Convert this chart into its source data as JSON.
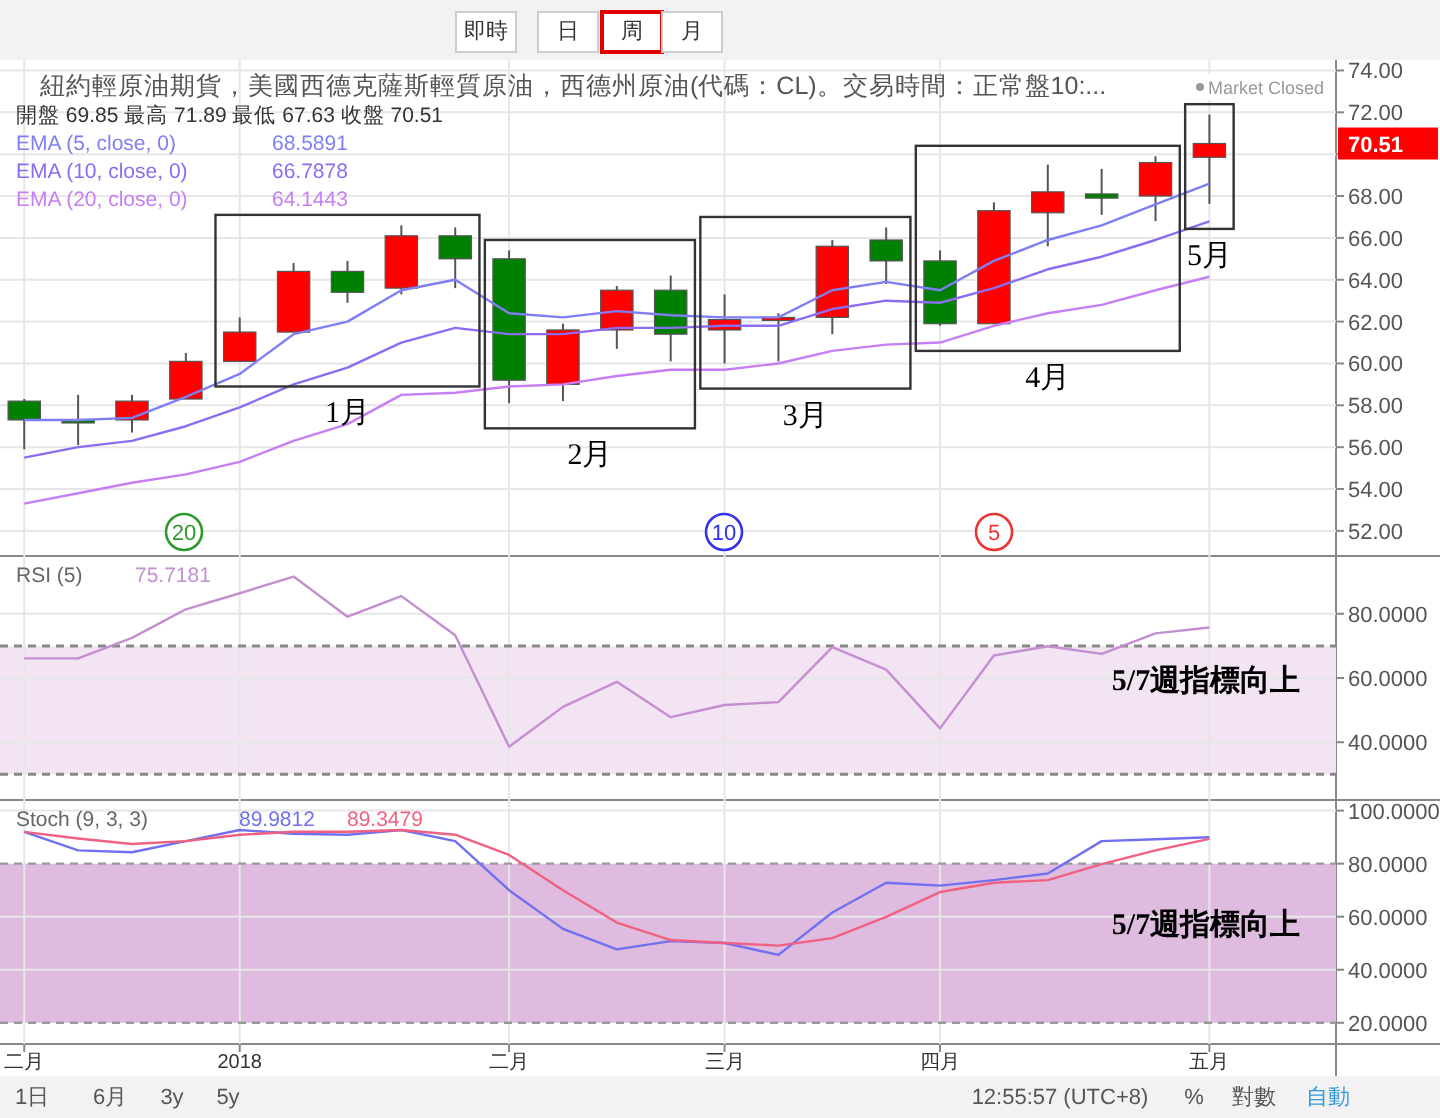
{
  "chart_data": [
    {
      "type": "candlestick",
      "title": "紐約輕原油期貨，美國西德克薩斯輕質原油，西德州原油(代碼：CL)。交易時間：正常盤10:...",
      "categories": [
        null,
        null,
        null,
        null,
        null,
        null,
        null,
        null,
        null,
        null,
        null,
        null,
        null,
        null,
        null,
        null,
        null,
        null,
        null,
        null,
        null,
        null,
        null
      ],
      "ohlc": [
        [
          58.2,
          58.3,
          55.9,
          57.3
        ],
        [
          57.3,
          58.5,
          56.1,
          57.2
        ],
        [
          57.3,
          58.5,
          56.7,
          58.2
        ],
        [
          58.3,
          60.5,
          58.3,
          60.1
        ],
        [
          60.1,
          62.2,
          60.1,
          61.5
        ],
        [
          61.5,
          64.8,
          61.5,
          64.4
        ],
        [
          64.4,
          64.9,
          62.9,
          63.4
        ],
        [
          63.6,
          66.6,
          63.3,
          66.1
        ],
        [
          66.1,
          66.5,
          63.6,
          65.0
        ],
        [
          65.0,
          65.4,
          58.1,
          59.2
        ],
        [
          59.0,
          61.9,
          58.2,
          61.6
        ],
        [
          61.6,
          63.7,
          60.7,
          63.5
        ],
        [
          63.5,
          64.2,
          60.1,
          61.4
        ],
        [
          61.6,
          63.3,
          60.0,
          62.1
        ],
        [
          62.1,
          62.4,
          60.1,
          62.2
        ],
        [
          62.2,
          65.9,
          61.4,
          65.6
        ],
        [
          65.9,
          66.5,
          63.8,
          64.9
        ],
        [
          64.9,
          65.4,
          61.8,
          61.9
        ],
        [
          61.9,
          67.7,
          61.9,
          67.3
        ],
        [
          67.2,
          69.5,
          65.6,
          68.2
        ],
        [
          68.1,
          69.3,
          67.1,
          67.9
        ],
        [
          68.0,
          69.9,
          66.8,
          69.6
        ],
        [
          69.85,
          71.89,
          67.63,
          70.51
        ]
      ],
      "colors": [
        "#008000",
        "#008000",
        "#ff0000",
        "#ff0000",
        "#ff0000",
        "#ff0000",
        "#008000",
        "#ff0000",
        "#008000",
        "#008000",
        "#ff0000",
        "#ff0000",
        "#008000",
        "#ff0000",
        "#ff0000",
        "#ff0000",
        "#008000",
        "#008000",
        "#ff0000",
        "#ff0000",
        "#008000",
        "#ff0000",
        "#ff0000"
      ],
      "series": [
        {
          "type": "line",
          "name": "EMA (5, close, 0)",
          "color": "#7f7ff5",
          "values": [
            57.3,
            57.3,
            57.4,
            58.4,
            59.5,
            61.4,
            62.0,
            63.5,
            64.0,
            62.4,
            62.2,
            62.5,
            62.3,
            62.2,
            62.2,
            63.5,
            63.9,
            63.5,
            64.9,
            65.9,
            66.6,
            67.6,
            68.5891
          ]
        },
        {
          "type": "line",
          "name": "EMA (10, close, 0)",
          "color": "#8c6cf0",
          "values": [
            55.5,
            56.0,
            56.3,
            57.0,
            57.9,
            59.0,
            59.8,
            61.0,
            61.7,
            61.4,
            61.4,
            61.7,
            61.7,
            61.8,
            61.8,
            62.6,
            63.0,
            62.9,
            63.6,
            64.5,
            65.1,
            65.9,
            66.7878
          ]
        },
        {
          "type": "line",
          "name": "EMA (20, close, 0)",
          "color": "#c77ef5",
          "values": [
            53.3,
            53.8,
            54.3,
            54.7,
            55.3,
            56.3,
            57.1,
            58.5,
            58.6,
            58.9,
            59.0,
            59.4,
            59.7,
            59.7,
            60.0,
            60.6,
            60.9,
            61.0,
            61.8,
            62.4,
            62.8,
            63.5,
            64.1443
          ]
        }
      ],
      "ylim": [
        50.8,
        74.5
      ],
      "yticks": [
        {
          "value": 52,
          "label": "52.00"
        },
        {
          "value": 54,
          "label": "54.00"
        },
        {
          "value": 56,
          "label": "56.00"
        },
        {
          "value": 58,
          "label": "58.00"
        },
        {
          "value": 60,
          "label": "60.00"
        },
        {
          "value": 62,
          "label": "62.00"
        },
        {
          "value": 64,
          "label": "64.00"
        },
        {
          "value": 66,
          "label": "66.00"
        },
        {
          "value": 68,
          "label": "68.00"
        },
        {
          "value": 70,
          "label": null
        },
        {
          "value": 72,
          "label": "72.00"
        },
        {
          "value": 74,
          "label": "74.00"
        }
      ],
      "tick_labels": "y",
      "grid": true,
      "legend": "top left",
      "annotations": [
        "開盤 69.85 最高 71.89 最低 67.63 收盤 70.51",
        "Market Closed",
        "即時",
        "日",
        "周",
        "月",
        "1日",
        "6月",
        "3y",
        "5y",
        "12:55:57 (UTC+8)",
        "%",
        "對數",
        "自動",
        "1月",
        "2月",
        "3月",
        "4月",
        "5月",
        "20",
        "10",
        "5",
        "70.51",
        "68.5891",
        "66.7878",
        "64.1443"
      ]
    },
    {
      "type": "line",
      "title": "RSI (5)",
      "categories": [
        null,
        null,
        null,
        null,
        null,
        null,
        null,
        null,
        null,
        null,
        null,
        null,
        null,
        null,
        null,
        null,
        null,
        null,
        null,
        null,
        null,
        null,
        null
      ],
      "series": [
        {
          "color": "#c38fd0",
          "values": [
            66.1,
            66.1,
            72.5,
            81.4,
            86.4,
            91.6,
            79.1,
            85.5,
            73.3,
            38.6,
            51.0,
            58.8,
            47.8,
            51.6,
            52.5,
            69.6,
            62.6,
            44.3,
            67.0,
            69.9,
            67.5,
            73.9,
            75.7181
          ]
        }
      ],
      "ylim": [
        22,
        98
      ],
      "yticks": [
        {
          "value": 40,
          "label": "40.0000"
        },
        {
          "value": 60,
          "label": "60.0000"
        },
        {
          "value": 80,
          "label": "80.0000"
        }
      ],
      "tick_labels": "y",
      "grid": true,
      "bands": [
        {
          "axis": "y",
          "from": 30,
          "to": 70,
          "color": "#f3e4f3"
        }
      ],
      "ref_lines": [
        {
          "axis": "y",
          "value": 70,
          "line_style": "dashed",
          "color": "#888888"
        },
        {
          "axis": "y",
          "value": 30,
          "line_style": "dashed",
          "color": "#888888"
        }
      ],
      "annotations": [
        "5/7週指標向上",
        "75.7181"
      ]
    },
    {
      "type": "line",
      "title": "Stoch (9, 3, 3)",
      "categories": [
        "二月",
        null,
        null,
        null,
        "2018",
        null,
        null,
        null,
        null,
        "二月",
        null,
        null,
        null,
        "三月",
        null,
        null,
        null,
        "四月",
        null,
        null,
        null,
        null,
        "五月"
      ],
      "series": [
        {
          "color": "#7070f0",
          "values": [
            92.0,
            85.0,
            84.3,
            88.5,
            92.7,
            91.3,
            90.9,
            92.7,
            88.5,
            70.0,
            55.4,
            47.7,
            50.8,
            50.1,
            45.6,
            61.6,
            72.8,
            71.7,
            73.8,
            76.3,
            88.5,
            89.2,
            89.9812
          ]
        },
        {
          "color": "#f06080",
          "values": [
            92.0,
            89.5,
            87.4,
            88.5,
            90.9,
            92.0,
            92.0,
            92.7,
            90.9,
            83.3,
            70.0,
            57.8,
            51.2,
            50.1,
            49.1,
            51.9,
            59.9,
            69.3,
            72.8,
            73.8,
            79.8,
            85.0,
            89.3479
          ]
        }
      ],
      "ylim": [
        12,
        104
      ],
      "yticks": [
        {
          "value": 20,
          "label": "20.0000"
        },
        {
          "value": 40,
          "label": "40.0000"
        },
        {
          "value": 60,
          "label": "60.0000"
        },
        {
          "value": 80,
          "label": "80.0000"
        },
        {
          "value": 100,
          "label": "100.0000"
        }
      ],
      "grid": true,
      "bands": [
        {
          "axis": "y",
          "from": 20,
          "to": 80,
          "color": "#dfbcdf"
        }
      ],
      "annotations": [
        "5/7週指標向上",
        "89.9812",
        "89.3479"
      ]
    }
  ]
}
